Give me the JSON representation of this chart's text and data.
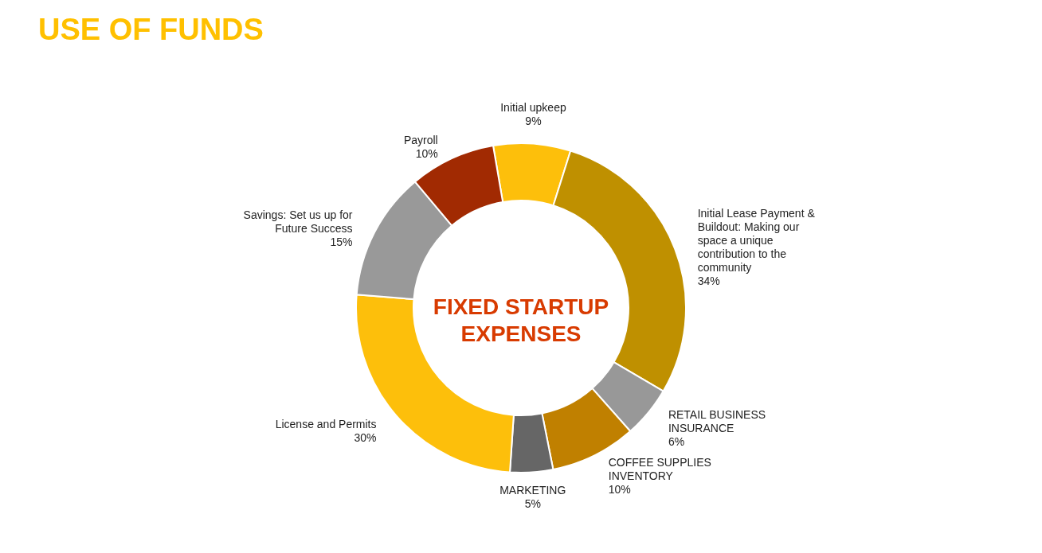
{
  "chart_data": {
    "type": "donut",
    "title": "USE OF FUNDS",
    "categories": [
      "Initial upkeep",
      "Initial Lease Payment & Buildout: Making our space a unique contribution to the community",
      "RETAIL BUSINESS INSURANCE",
      "COFFEE SUPPLIES INVENTORY",
      "MARKETING",
      "License and Permits",
      "Savings: Set us up for Future Success",
      "Payroll"
    ],
    "values": [
      9,
      34,
      6,
      10,
      5,
      30,
      15,
      10
    ],
    "value_labels": [
      "9%",
      "34%",
      "6%",
      "10%",
      "5%",
      "30%",
      "15%",
      "10%"
    ],
    "colors": [
      "#fdbf0b",
      "#bf9000",
      "#989898",
      "#c08000",
      "#666666",
      "#fdbf0b",
      "#999999",
      "#a12a02"
    ],
    "annotations": [
      "FIXED STARTUP EXPENSES"
    ],
    "legend": false
  }
}
